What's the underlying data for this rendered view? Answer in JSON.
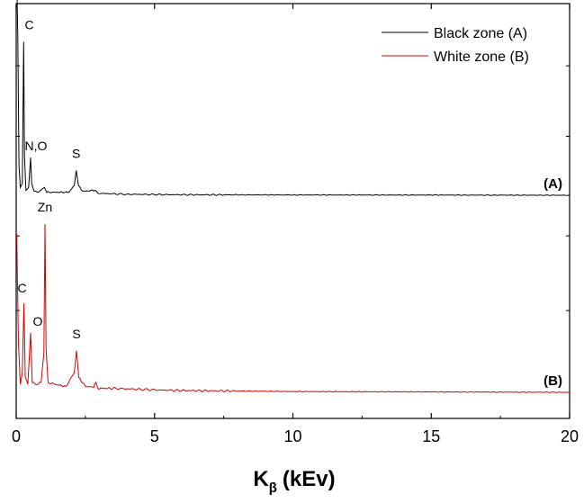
{
  "chart_data": {
    "type": "line",
    "title": "",
    "xlabel": {
      "main": "K",
      "sub": "β",
      "unit": "(kEv)"
    },
    "ylabel": "",
    "xlim": [
      0,
      20
    ],
    "x_ticks": [
      "0",
      "5",
      "10",
      "15",
      "20"
    ],
    "legend": {
      "placement": "top-right",
      "entries": [
        "Black zone (A)",
        "White zone (B)"
      ]
    },
    "colors": {
      "A": "#000000",
      "B": "#d40000"
    },
    "series": [
      {
        "name": "Black zone (A)",
        "panel_label": "(A)",
        "baseline": 0,
        "points": [
          [
            0.02,
            2.2
          ],
          [
            0.06,
            1.6
          ],
          [
            0.1,
            0.3
          ],
          [
            0.15,
            0.08
          ],
          [
            0.22,
            0.12
          ],
          [
            0.27,
            1.55
          ],
          [
            0.3,
            0.4
          ],
          [
            0.35,
            0.05
          ],
          [
            0.45,
            0.08
          ],
          [
            0.52,
            0.38
          ],
          [
            0.56,
            0.12
          ],
          [
            0.65,
            0.04
          ],
          [
            0.8,
            0.03
          ],
          [
            1.02,
            0.08
          ],
          [
            1.1,
            0.03
          ],
          [
            1.5,
            0.03
          ],
          [
            1.9,
            0.03
          ],
          [
            2.1,
            0.1
          ],
          [
            2.17,
            0.25
          ],
          [
            2.25,
            0.1
          ],
          [
            2.4,
            0.04
          ],
          [
            2.85,
            0.05
          ],
          [
            2.95,
            0.02
          ],
          [
            4,
            0.01
          ],
          [
            6,
            0.005
          ],
          [
            10,
            0.003
          ],
          [
            15,
            0.002
          ],
          [
            20,
            0
          ]
        ],
        "peaks": [
          {
            "label": "C",
            "x": 0.28,
            "y": 1.55
          },
          {
            "label": "N,O",
            "x": 0.52,
            "y": 0.38
          },
          {
            "label": "S",
            "x": 2.17,
            "y": 0.25
          }
        ]
      },
      {
        "name": "White zone (B)",
        "panel_label": "(B)",
        "baseline": 0,
        "points": [
          [
            0.02,
            1.6
          ],
          [
            0.08,
            0.5
          ],
          [
            0.15,
            0.08
          ],
          [
            0.22,
            0.2
          ],
          [
            0.28,
            0.9
          ],
          [
            0.33,
            0.15
          ],
          [
            0.42,
            0.08
          ],
          [
            0.52,
            0.6
          ],
          [
            0.58,
            0.1
          ],
          [
            0.7,
            0.08
          ],
          [
            0.9,
            0.1
          ],
          [
            1.0,
            0.4
          ],
          [
            1.04,
            1.7
          ],
          [
            1.08,
            0.45
          ],
          [
            1.15,
            0.1
          ],
          [
            1.4,
            0.08
          ],
          [
            1.8,
            0.06
          ],
          [
            2.1,
            0.2
          ],
          [
            2.18,
            0.42
          ],
          [
            2.26,
            0.15
          ],
          [
            2.5,
            0.06
          ],
          [
            2.8,
            0.05
          ],
          [
            2.88,
            0.1
          ],
          [
            2.95,
            0.04
          ],
          [
            3.5,
            0.04
          ],
          [
            4.5,
            0.03
          ],
          [
            5.5,
            0.02
          ],
          [
            7,
            0.015
          ],
          [
            10,
            0.008
          ],
          [
            15,
            0.004
          ],
          [
            20,
            0
          ]
        ],
        "peaks": [
          {
            "label": "Zn",
            "x": 1.04,
            "y": 1.7
          },
          {
            "label": "C",
            "x": 0.28,
            "y": 0.9
          },
          {
            "label": "O",
            "x": 0.52,
            "y": 0.6
          },
          {
            "label": "S",
            "x": 2.18,
            "y": 0.42
          }
        ]
      }
    ]
  }
}
